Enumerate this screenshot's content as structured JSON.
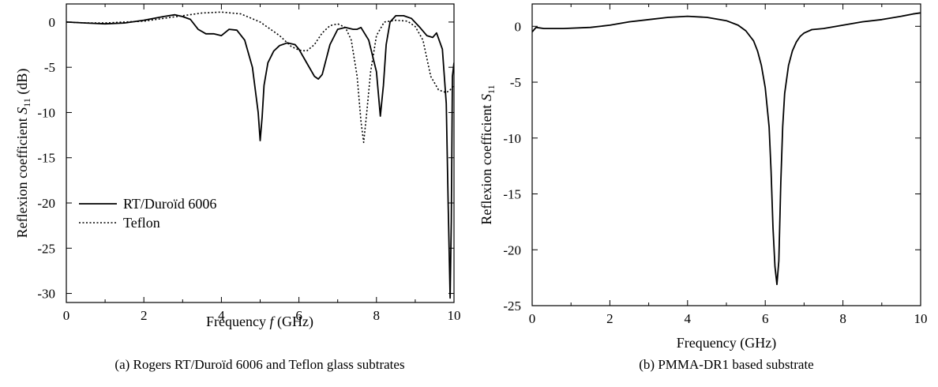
{
  "chart_data": [
    {
      "type": "line",
      "panel": "a",
      "caption": "(a) Rogers RT/Duroïd 6006 and Teflon glass subtrates",
      "xlabel": "Frequency f (GHz)",
      "xlabel_parts": {
        "before": "Frequency ",
        "italic": "f",
        "after": " (GHz)"
      },
      "ylabel": "Reflexion coefficient S11 (dB)",
      "ylabel_parts": {
        "before": "Reflexion coefficient ",
        "italic": "S",
        "sub": "11",
        "after": " (dB)"
      },
      "xlim": [
        0,
        10
      ],
      "ylim": [
        -31,
        2
      ],
      "x_ticks": [
        0,
        2,
        4,
        6,
        8,
        10
      ],
      "y_ticks": [
        0,
        -5,
        -10,
        -15,
        -20,
        -25,
        -30
      ],
      "grid": false,
      "legend_position": "left-center",
      "series": [
        {
          "name": "RT/Duroïd 6006",
          "style": "solid",
          "x": [
            0,
            0.5,
            1.0,
            1.5,
            2.0,
            2.5,
            2.8,
            3.0,
            3.2,
            3.4,
            3.6,
            3.8,
            4.0,
            4.2,
            4.4,
            4.6,
            4.8,
            4.95,
            5.0,
            5.05,
            5.1,
            5.2,
            5.35,
            5.5,
            5.7,
            5.9,
            6.0,
            6.2,
            6.4,
            6.5,
            6.6,
            6.8,
            7.0,
            7.2,
            7.4,
            7.5,
            7.6,
            7.8,
            8.0,
            8.1,
            8.18,
            8.25,
            8.35,
            8.5,
            8.7,
            8.9,
            9.1,
            9.3,
            9.45,
            9.55,
            9.7,
            9.8,
            9.85,
            9.9,
            9.93,
            9.96,
            10.0
          ],
          "y": [
            0,
            -0.1,
            -0.2,
            -0.1,
            0.2,
            0.6,
            0.8,
            0.6,
            0.3,
            -0.8,
            -1.3,
            -1.3,
            -1.5,
            -0.8,
            -0.9,
            -2.0,
            -5.0,
            -10.0,
            -13.1,
            -10.5,
            -7.0,
            -4.5,
            -3.2,
            -2.6,
            -2.3,
            -2.5,
            -3.0,
            -4.5,
            -6.0,
            -6.3,
            -5.8,
            -2.5,
            -0.8,
            -0.6,
            -0.8,
            -0.8,
            -0.6,
            -2.0,
            -5.5,
            -10.4,
            -7.0,
            -2.5,
            0.0,
            0.7,
            0.7,
            0.4,
            -0.5,
            -1.5,
            -1.7,
            -1.2,
            -3.0,
            -9.0,
            -20.0,
            -30.5,
            -22.0,
            -6.0,
            -4.5
          ]
        },
        {
          "name": "Teflon",
          "style": "dotted",
          "x": [
            0,
            0.5,
            1.0,
            1.5,
            2.0,
            2.5,
            3.0,
            3.5,
            4.0,
            4.5,
            5.0,
            5.5,
            5.8,
            6.0,
            6.2,
            6.4,
            6.6,
            6.8,
            7.0,
            7.2,
            7.35,
            7.5,
            7.6,
            7.67,
            7.75,
            7.85,
            8.0,
            8.2,
            8.5,
            8.8,
            9.0,
            9.2,
            9.4,
            9.6,
            9.8,
            9.9,
            10.0
          ],
          "y": [
            0,
            -0.1,
            -0.1,
            0.0,
            0.1,
            0.4,
            0.7,
            1.0,
            1.1,
            0.9,
            0.0,
            -1.5,
            -2.7,
            -3.1,
            -3.2,
            -2.5,
            -1.2,
            -0.4,
            -0.2,
            -0.6,
            -2.0,
            -6.0,
            -11.0,
            -13.3,
            -10.0,
            -5.5,
            -1.5,
            0.0,
            0.2,
            0.1,
            -0.5,
            -2.0,
            -6.0,
            -7.5,
            -7.8,
            -7.5,
            -7.0
          ]
        }
      ]
    },
    {
      "type": "line",
      "panel": "b",
      "caption": "(b) PMMA-DR1 based substrate",
      "xlabel": "Frequency (GHz)",
      "ylabel": "Reflexion coefficient S11",
      "ylabel_parts": {
        "before": "Reflexion coefficient ",
        "italic": "S",
        "sub": "11",
        "after": ""
      },
      "xlim": [
        0,
        10
      ],
      "ylim": [
        -25,
        2
      ],
      "x_ticks": [
        0,
        2,
        4,
        6,
        8,
        10
      ],
      "y_ticks": [
        0,
        -5,
        -10,
        -15,
        -20,
        -25
      ],
      "grid": false,
      "series": [
        {
          "style": "solid",
          "x": [
            0,
            0.1,
            0.3,
            0.8,
            1.5,
            2.0,
            2.5,
            3.0,
            3.5,
            4.0,
            4.5,
            5.0,
            5.3,
            5.5,
            5.7,
            5.8,
            5.9,
            6.0,
            6.1,
            6.15,
            6.2,
            6.25,
            6.3,
            6.35,
            6.4,
            6.45,
            6.5,
            6.6,
            6.7,
            6.8,
            6.9,
            7.0,
            7.2,
            7.5,
            8.0,
            8.5,
            9.0,
            9.5,
            9.8,
            10.0
          ],
          "y": [
            -0.5,
            -0.1,
            -0.2,
            -0.2,
            -0.1,
            0.1,
            0.4,
            0.6,
            0.8,
            0.9,
            0.8,
            0.5,
            0.1,
            -0.4,
            -1.3,
            -2.2,
            -3.5,
            -5.5,
            -9.0,
            -13.0,
            -18.0,
            -21.5,
            -23.1,
            -21.0,
            -14.0,
            -9.0,
            -6.0,
            -3.5,
            -2.2,
            -1.4,
            -0.9,
            -0.6,
            -0.3,
            -0.2,
            0.1,
            0.4,
            0.6,
            0.9,
            1.1,
            1.2
          ]
        }
      ]
    }
  ]
}
